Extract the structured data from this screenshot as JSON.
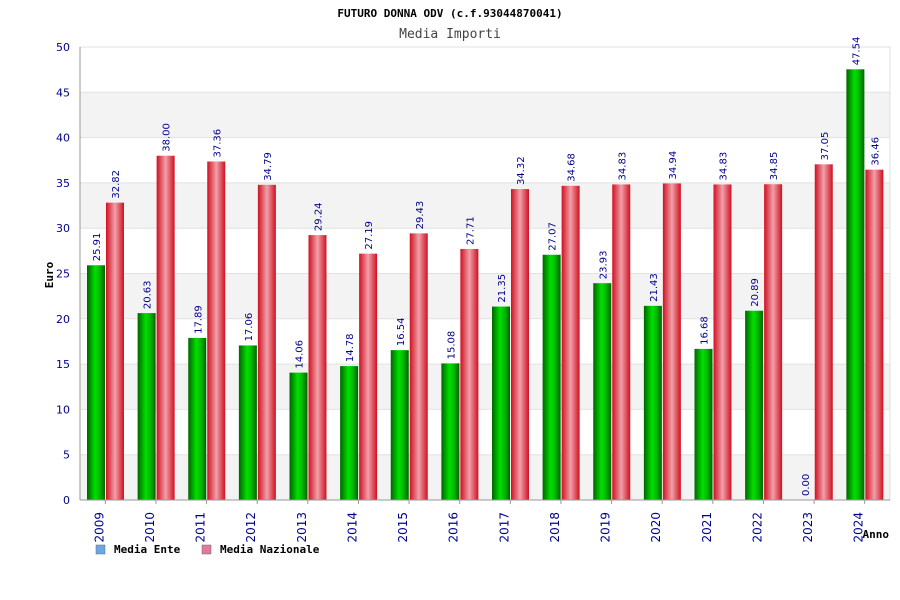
{
  "chart_data": {
    "type": "bar",
    "title": "FUTURO DONNA ODV (c.f.93044870041)",
    "subtitle": "Media Importi",
    "xlabel": "Anno",
    "ylabel": "Euro",
    "ylim": [
      0,
      50
    ],
    "yticks": [
      0,
      5,
      10,
      15,
      20,
      25,
      30,
      35,
      40,
      45,
      50
    ],
    "categories": [
      "2009",
      "2010",
      "2011",
      "2012",
      "2013",
      "2014",
      "2015",
      "2016",
      "2017",
      "2018",
      "2019",
      "2020",
      "2021",
      "2022",
      "2023",
      "2024"
    ],
    "series": [
      {
        "name": "Media Ente",
        "color": "#00b000",
        "legend_color": "#6aa8e8",
        "values": [
          25.91,
          20.63,
          17.89,
          17.06,
          14.06,
          14.78,
          16.54,
          15.08,
          21.35,
          27.07,
          23.93,
          21.43,
          16.68,
          20.89,
          0.0,
          47.54
        ],
        "labels": [
          "25.91",
          "20.63",
          "17.89",
          "17.06",
          "14.06",
          "14.78",
          "16.54",
          "15.08",
          "21.35",
          "27.07",
          "23.93",
          "21.43",
          "16.68",
          "20.89",
          "0.00",
          "47.54"
        ]
      },
      {
        "name": "Media Nazionale",
        "color": "#e81828",
        "legend_color": "#e07a9a",
        "values": [
          32.82,
          38.0,
          37.36,
          34.79,
          29.24,
          27.19,
          29.43,
          27.71,
          34.32,
          34.68,
          34.83,
          34.94,
          34.83,
          34.85,
          37.05,
          36.46
        ],
        "labels": [
          "32.82",
          "38.00",
          "37.36",
          "34.79",
          "29.24",
          "27.19",
          "29.43",
          "27.71",
          "34.32",
          "34.68",
          "34.83",
          "34.94",
          "34.83",
          "34.85",
          "37.05",
          "36.46"
        ]
      }
    ],
    "grid": true,
    "legend_position": "bottom-left"
  }
}
